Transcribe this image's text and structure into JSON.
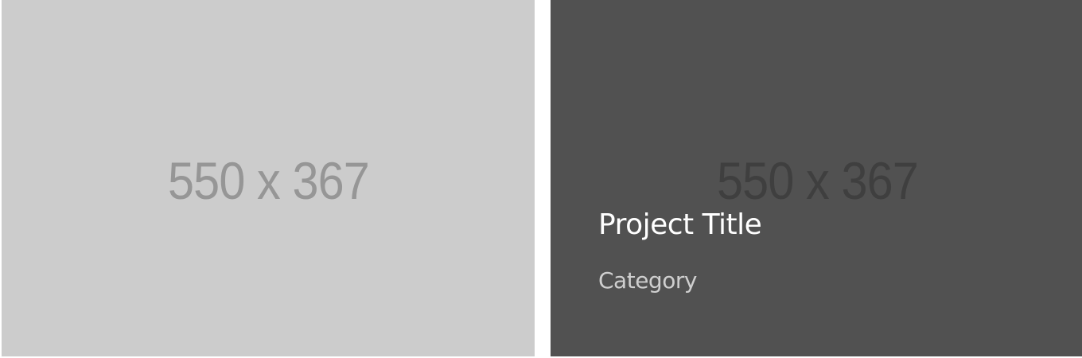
{
  "portfolio": {
    "items": [
      {
        "placeholder_text": "550 x 367",
        "background_color": "#cccccc",
        "placeholder_color": "#969696"
      },
      {
        "placeholder_text": "550 x 367",
        "background_color": "#515151",
        "placeholder_color": "#3f3f3f",
        "title": "Project Title",
        "category": "Category",
        "title_color": "#ffffff",
        "category_color": "#cfcfcf"
      }
    ]
  }
}
